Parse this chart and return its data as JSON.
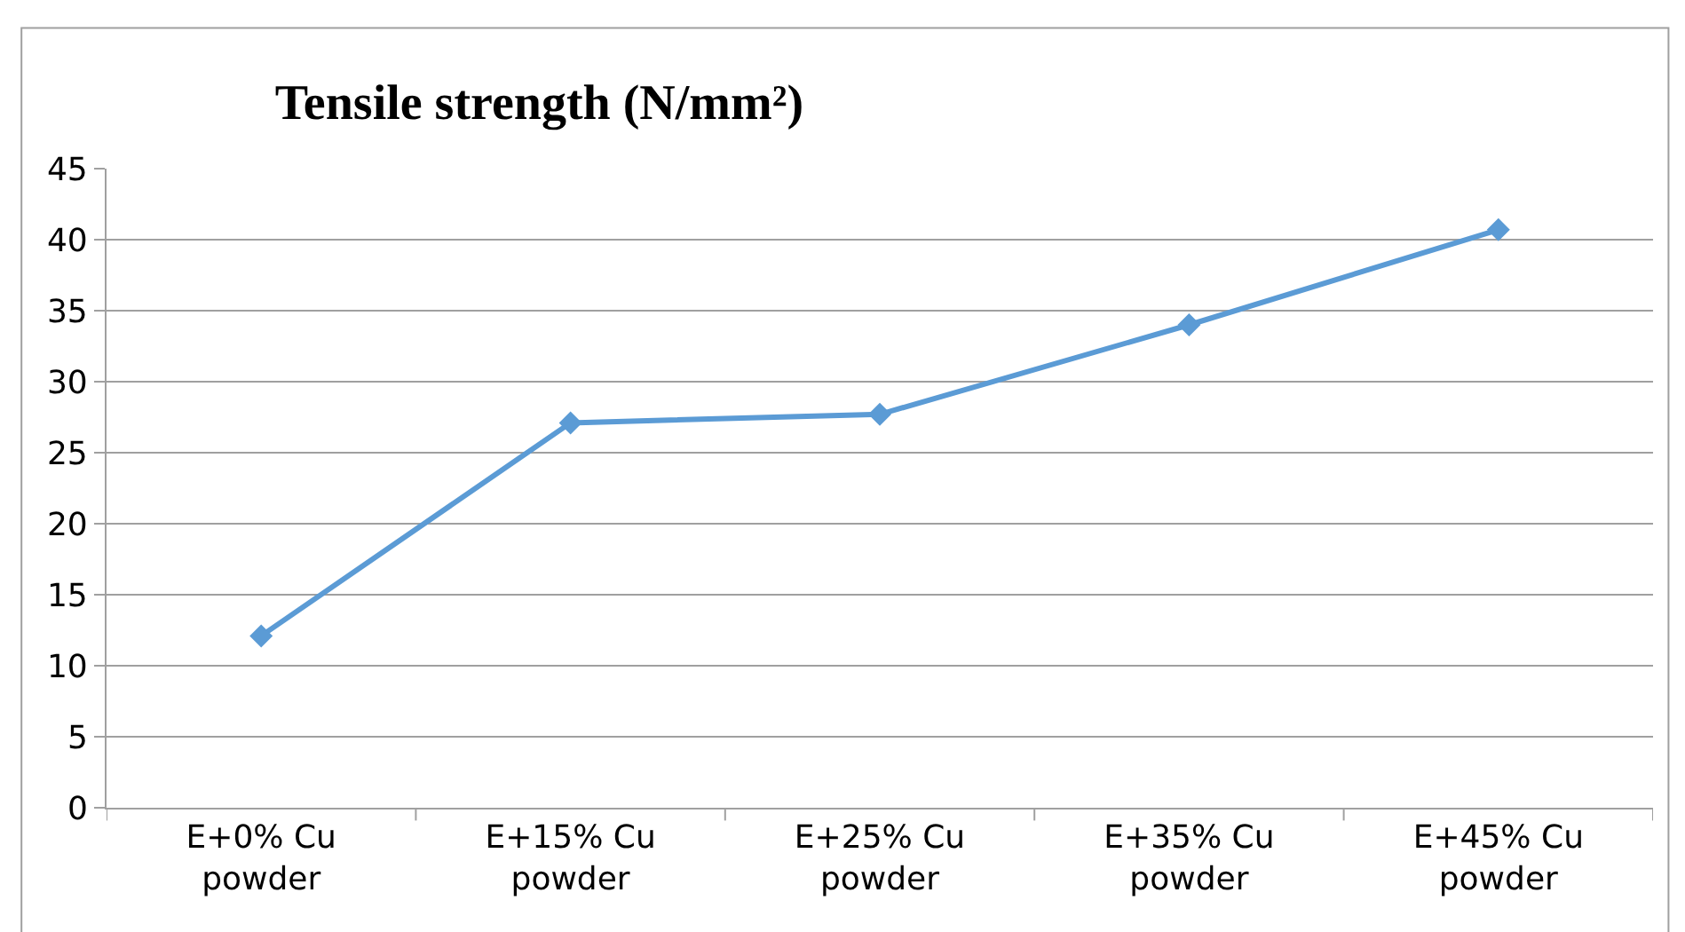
{
  "chart_data": {
    "type": "line",
    "title": "Tensile strength (N/mm²)",
    "categories": [
      "E+0% Cu powder",
      "E+15% Cu powder",
      "E+25% Cu powder",
      "E+35% Cu powder",
      "E+45% Cu powder"
    ],
    "series": [
      {
        "color": "#5b9bd5",
        "values": [
          12.1,
          27.1,
          27.7,
          34.0,
          40.7
        ]
      }
    ],
    "ylim": [
      0,
      45
    ],
    "yticks": [
      0,
      5,
      10,
      15,
      20,
      25,
      30,
      35,
      40,
      45
    ],
    "grid": "y",
    "marker": "diamond",
    "line_style": "solid"
  }
}
